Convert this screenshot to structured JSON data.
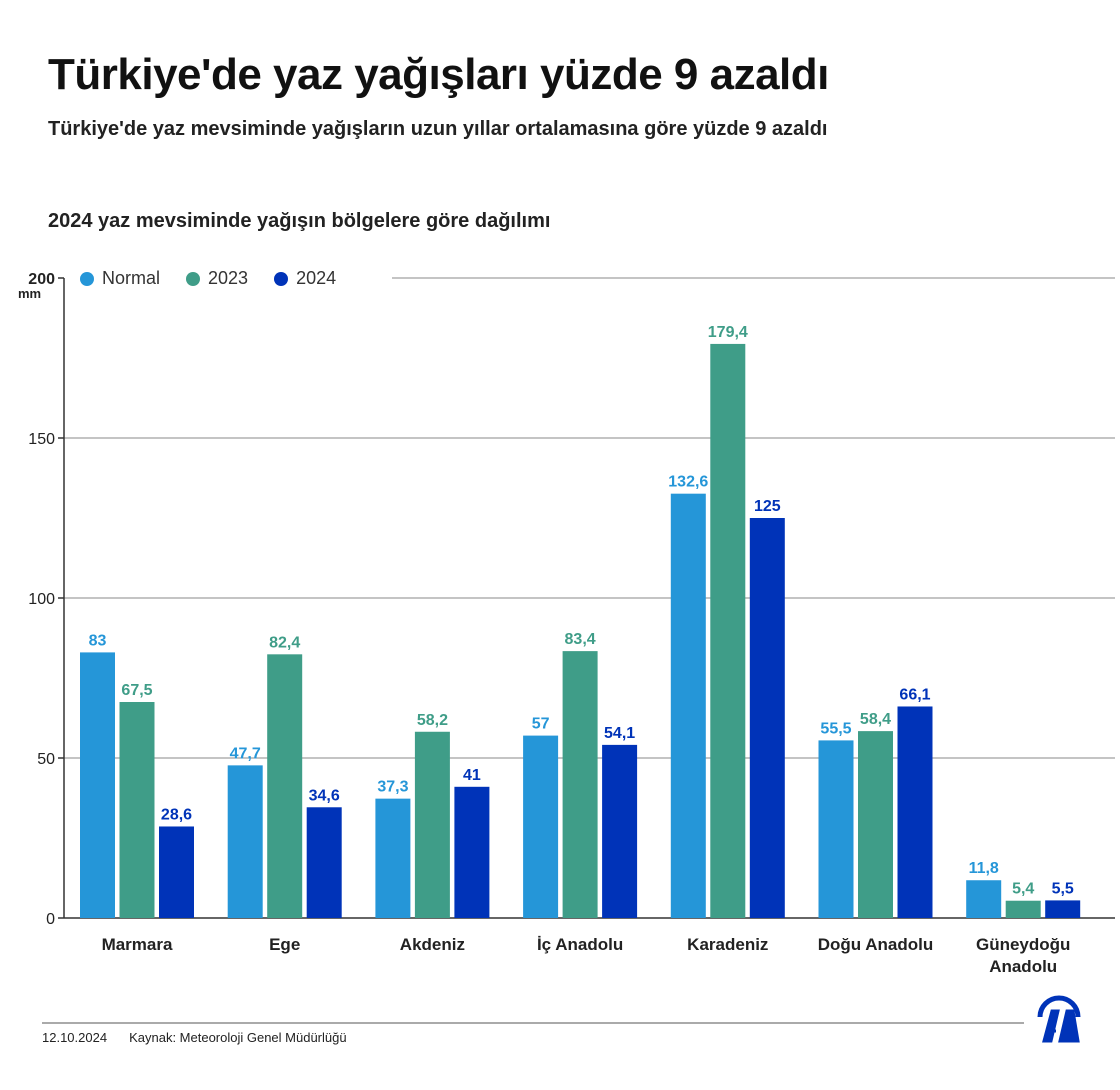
{
  "title": "Türkiye'de yaz yağışları yüzde 9 azaldı",
  "subtitle": "Türkiye'de yaz mevsiminde yağışların uzun yıllar ortalamasına göre yüzde 9 azaldı",
  "footer": {
    "date": "12.10.2024",
    "source": "Kaynak: Meteoroloji Genel Müdürlüğü",
    "logo": "AA"
  },
  "chart_data": {
    "type": "bar",
    "title": "2024 yaz mevsiminde yağışın bölgelere göre dağılımı",
    "ylabel": "mm",
    "ylim": [
      0,
      200
    ],
    "yticks": [
      0,
      50,
      100,
      150,
      200
    ],
    "grid": true,
    "legend_position": "top-left",
    "categories": [
      "Marmara",
      "Ege",
      "Akdeniz",
      "İç Anadolu",
      "Karadeniz",
      "Doğu Anadolu",
      "Güneydoğu Anadolu"
    ],
    "series": [
      {
        "name": "Normal",
        "color": "#2596d8",
        "values": [
          83,
          47.7,
          37.3,
          57,
          132.6,
          55.5,
          11.8
        ],
        "labels": [
          "83",
          "47,7",
          "37,3",
          "57",
          "132,6",
          "55,5",
          "11,8"
        ]
      },
      {
        "name": "2023",
        "color": "#3f9d88",
        "values": [
          67.5,
          82.4,
          58.2,
          83.4,
          179.4,
          58.4,
          5.4
        ],
        "labels": [
          "67,5",
          "82,4",
          "58,2",
          "83,4",
          "179,4",
          "58,4",
          "5,4"
        ]
      },
      {
        "name": "2024",
        "color": "#0033b8",
        "values": [
          28.6,
          34.6,
          41,
          54.1,
          125,
          66.1,
          5.5
        ],
        "labels": [
          "28,6",
          "34,6",
          "41",
          "54,1",
          "125",
          "66,1",
          "5,5"
        ]
      }
    ]
  }
}
